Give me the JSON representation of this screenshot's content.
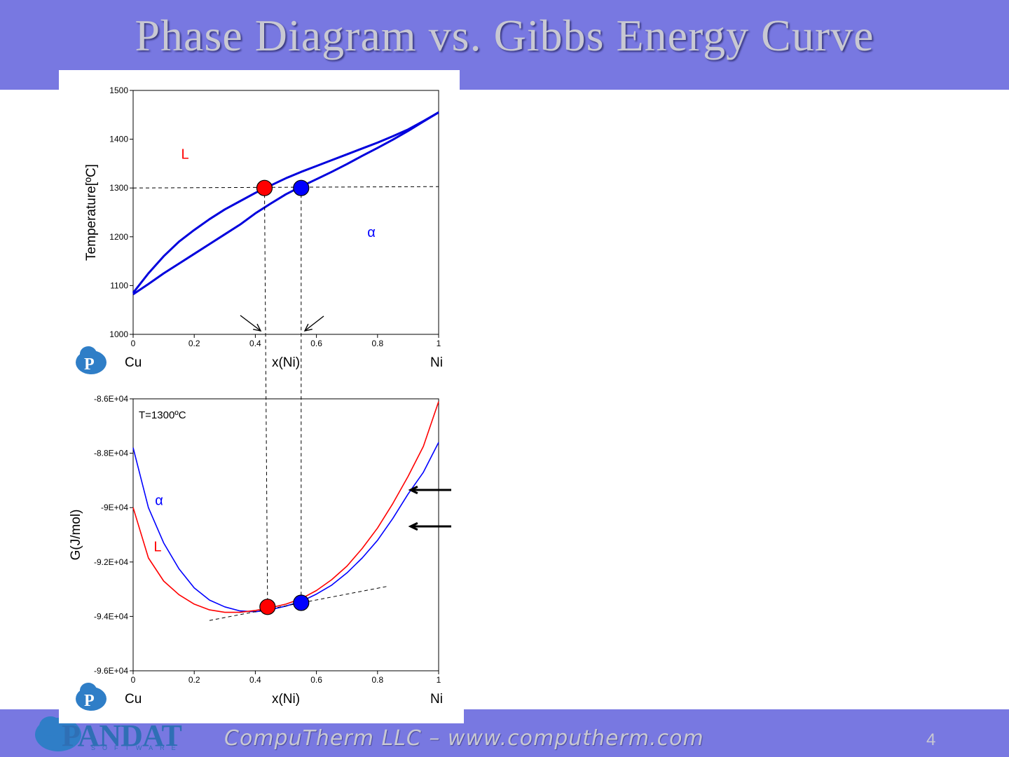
{
  "slide": {
    "title": "Phase Diagram vs. Gibbs Energy Curve",
    "footer": "CompuTherm LLC – www.computherm.com",
    "page_number": "4",
    "logo_text": "PANDAT",
    "logo_subtext": "SOFTWARE",
    "band_color": "#7878e1"
  },
  "chart_data": [
    {
      "type": "line",
      "xlabel": "x(Ni)",
      "ylabel": "Temperature[ºC]",
      "x_left_label": "Cu",
      "x_right_label": "Ni",
      "xlim": [
        0,
        1
      ],
      "ylim": [
        1000,
        1500
      ],
      "x_ticks": [
        "0",
        "0.2",
        "0.4",
        "0.6",
        "0.8",
        "1"
      ],
      "y_ticks": [
        "1000",
        "1100",
        "1200",
        "1300",
        "1400",
        "1500"
      ],
      "region_labels": [
        {
          "text": "L",
          "x": 0.17,
          "y": 1360,
          "color": "#ff0000"
        },
        {
          "text": "α",
          "x": 0.78,
          "y": 1200,
          "color": "#0000ff"
        }
      ],
      "series": [
        {
          "role": "liquidus",
          "color": "#0000dd",
          "x": [
            0,
            0.05,
            0.1,
            0.15,
            0.2,
            0.25,
            0.3,
            0.35,
            0.4,
            0.45,
            0.5,
            0.55,
            0.6,
            0.65,
            0.7,
            0.75,
            0.8,
            0.85,
            0.9,
            0.95,
            1
          ],
          "y": [
            1085,
            1125,
            1160,
            1190,
            1214,
            1236,
            1256,
            1273,
            1290,
            1305,
            1320,
            1333,
            1345,
            1357,
            1369,
            1381,
            1393,
            1406,
            1420,
            1437,
            1455
          ]
        },
        {
          "role": "solidus",
          "color": "#0000dd",
          "x": [
            0,
            0.05,
            0.1,
            0.15,
            0.2,
            0.25,
            0.3,
            0.35,
            0.4,
            0.45,
            0.5,
            0.55,
            0.6,
            0.65,
            0.7,
            0.75,
            0.8,
            0.85,
            0.9,
            0.95,
            1
          ],
          "y": [
            1082,
            1103,
            1125,
            1145,
            1165,
            1185,
            1205,
            1225,
            1248,
            1268,
            1287,
            1303,
            1318,
            1333,
            1349,
            1366,
            1382,
            1399,
            1417,
            1436,
            1455
          ]
        }
      ],
      "tie_line": {
        "y": 1300,
        "points": [
          {
            "x": 0.43,
            "color": "#ff0000"
          },
          {
            "x": 0.55,
            "color": "#0000ff"
          }
        ]
      }
    },
    {
      "type": "line",
      "xlabel": "x(Ni)",
      "ylabel": "G(J/mol)",
      "x_left_label": "Cu",
      "x_right_label": "Ni",
      "annotation": "T=1300ºC",
      "xlim": [
        0,
        1
      ],
      "ylim": [
        -96000,
        -86000
      ],
      "x_ticks": [
        "0",
        "0.2",
        "0.4",
        "0.6",
        "0.8",
        "1"
      ],
      "y_ticks": [
        "-9.6E+04",
        "-9.4E+04",
        "-9.2E+04",
        "-9E+04",
        "-8.8E+04",
        "-8.6E+04"
      ],
      "y_tick_values": [
        -96000,
        -94000,
        -92000,
        -90000,
        -88000,
        -86000
      ],
      "series_labels": [
        {
          "text": "α",
          "x": 0.085,
          "y": -89900,
          "color": "#0000ff"
        },
        {
          "text": "L",
          "x": 0.08,
          "y": -91600,
          "color": "#ff0000"
        }
      ],
      "series": [
        {
          "role": "alpha",
          "color": "#0000ff",
          "x": [
            0,
            0.05,
            0.1,
            0.15,
            0.2,
            0.25,
            0.3,
            0.35,
            0.4,
            0.45,
            0.5,
            0.55,
            0.6,
            0.65,
            0.7,
            0.75,
            0.8,
            0.85,
            0.9,
            0.95,
            1
          ],
          "y": [
            -87800,
            -90000,
            -91300,
            -92250,
            -92950,
            -93400,
            -93650,
            -93800,
            -93830,
            -93750,
            -93620,
            -93450,
            -93180,
            -92850,
            -92400,
            -91850,
            -91200,
            -90400,
            -89500,
            -88700,
            -87600
          ]
        },
        {
          "role": "liquid",
          "color": "#ff0000",
          "x": [
            0,
            0.05,
            0.1,
            0.15,
            0.2,
            0.25,
            0.3,
            0.35,
            0.4,
            0.45,
            0.5,
            0.55,
            0.6,
            0.65,
            0.7,
            0.75,
            0.8,
            0.85,
            0.9,
            0.95,
            1
          ],
          "y": [
            -90000,
            -91850,
            -92700,
            -93200,
            -93550,
            -93760,
            -93850,
            -93850,
            -93780,
            -93680,
            -93550,
            -93350,
            -93050,
            -92650,
            -92150,
            -91500,
            -90750,
            -89850,
            -88850,
            -87750,
            -86100
          ]
        }
      ],
      "common_tangent": {
        "x": [
          0.25,
          0.83
        ],
        "y": [
          -94150,
          -92900
        ]
      },
      "tangent_points": [
        {
          "x": 0.44,
          "y": -93650,
          "color": "#ff0000"
        },
        {
          "x": 0.55,
          "y": -93500,
          "color": "#0000ff"
        }
      ]
    }
  ]
}
